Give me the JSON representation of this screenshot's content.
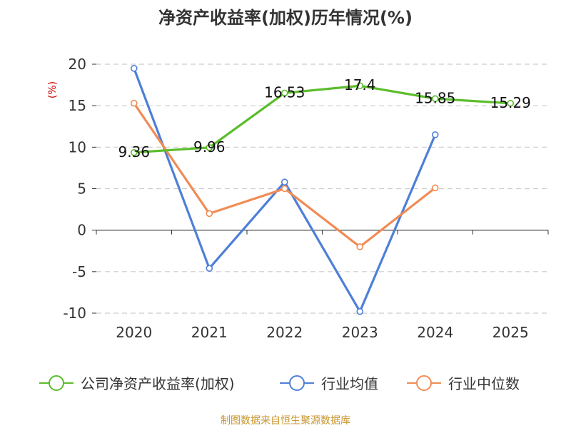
{
  "chart_data": {
    "type": "line",
    "title": "净资产收益率(加权)历年情况(%)",
    "y_unit_label": "(%)",
    "categories": [
      "2020",
      "2021",
      "2022",
      "2023",
      "2024",
      "2025"
    ],
    "ylim": [
      -10,
      20
    ],
    "yticks": [
      20,
      15,
      10,
      5,
      0,
      -5,
      -10
    ],
    "grid": true,
    "legend_position": "bottom",
    "series": [
      {
        "name": "公司净资产收益率(加权)",
        "color": "#5bbd2b",
        "values": [
          9.36,
          9.96,
          16.53,
          17.4,
          15.85,
          15.29
        ],
        "labels": [
          "9.36",
          "9.96",
          "16.53",
          "17.4",
          "15.85",
          "15.29"
        ]
      },
      {
        "name": "行业均值",
        "color": "#4e7fd8",
        "values": [
          19.5,
          -4.6,
          5.8,
          -9.8,
          11.5,
          null
        ],
        "labels": []
      },
      {
        "name": "行业中位数",
        "color": "#f08c55",
        "values": [
          15.3,
          2.0,
          5.0,
          -2.0,
          5.1,
          null
        ],
        "labels": []
      }
    ],
    "source": "制图数据来自恒生聚源数据库",
    "source_color": "#c8962d",
    "unit_color": "#cc0000"
  }
}
